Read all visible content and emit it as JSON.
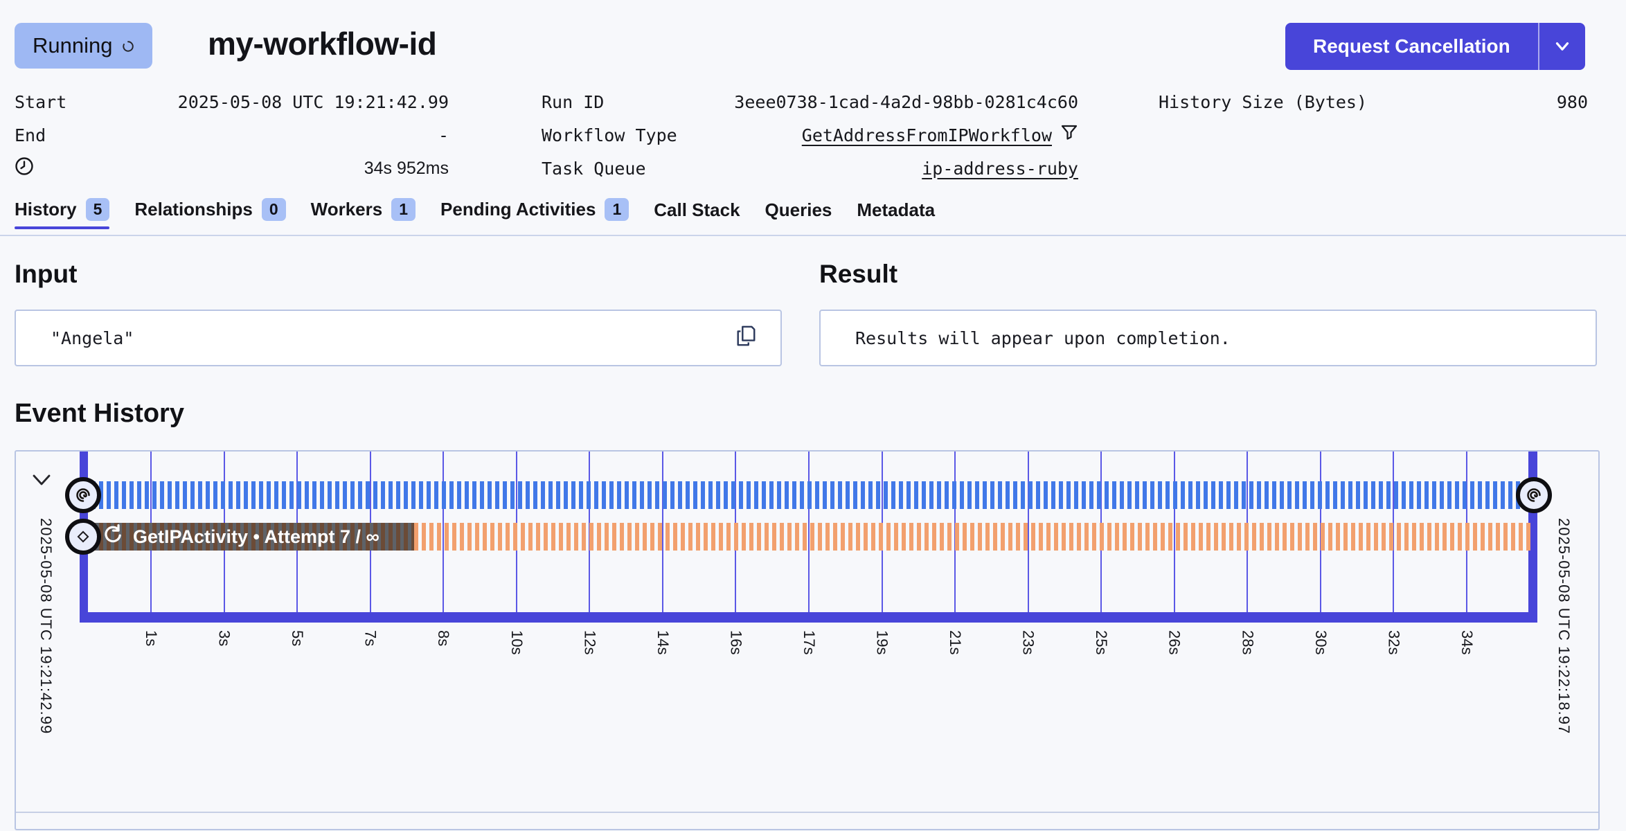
{
  "colors": {
    "accent_indigo": "#4845D9",
    "status_badge_bg": "#9EB8F3",
    "tab_badge_bg": "#A8C0F6",
    "grid_line": "#5B58E6",
    "stripe_blue": "#4178E8",
    "stripe_orange": "#F2A06E",
    "bar_dark_a": "#6B4B37",
    "bar_dark_b": "#5E6268",
    "box_border": "#B9C5E3",
    "page_bg": "#F7F8FB"
  },
  "header": {
    "status": "Running",
    "title": "my-workflow-id",
    "cancel_button": "Request Cancellation"
  },
  "metadata": {
    "start": {
      "label": "Start",
      "value": "2025-05-08 UTC 19:21:42.99"
    },
    "end": {
      "label": "End",
      "value": "-"
    },
    "duration": {
      "value": "34s 952ms"
    },
    "run_id": {
      "label": "Run ID",
      "value": "3eee0738-1cad-4a2d-98bb-0281c4c60"
    },
    "workflow_type": {
      "label": "Workflow Type",
      "value": "GetAddressFromIPWorkflow"
    },
    "task_queue": {
      "label": "Task Queue",
      "value": "ip-address-ruby"
    },
    "history_size": {
      "label": "History Size (Bytes)",
      "value": "980"
    }
  },
  "tabs": [
    {
      "label": "History",
      "badge": "5",
      "active": true
    },
    {
      "label": "Relationships",
      "badge": "0",
      "active": false
    },
    {
      "label": "Workers",
      "badge": "1",
      "active": false
    },
    {
      "label": "Pending Activities",
      "badge": "1",
      "active": false
    },
    {
      "label": "Call Stack",
      "badge": null,
      "active": false
    },
    {
      "label": "Queries",
      "badge": null,
      "active": false
    },
    {
      "label": "Metadata",
      "badge": null,
      "active": false
    }
  ],
  "input": {
    "title": "Input",
    "value": "\"Angela\""
  },
  "result": {
    "title": "Result",
    "value": "Results will appear upon completion."
  },
  "event_history": {
    "title": "Event History",
    "start_time": "2025-05-08 UTC 19:21:42.99",
    "end_time": "2025-05-08 UTC 19:22:18.97",
    "rows": [
      {
        "type": "workflow"
      },
      {
        "type": "activity",
        "label": "GetIPActivity • Attempt 7 / ∞"
      }
    ],
    "ticks": [
      "1s",
      "3s",
      "5s",
      "7s",
      "8s",
      "10s",
      "12s",
      "14s",
      "16s",
      "17s",
      "19s",
      "21s",
      "23s",
      "25s",
      "26s",
      "28s",
      "30s",
      "32s",
      "34s"
    ]
  }
}
